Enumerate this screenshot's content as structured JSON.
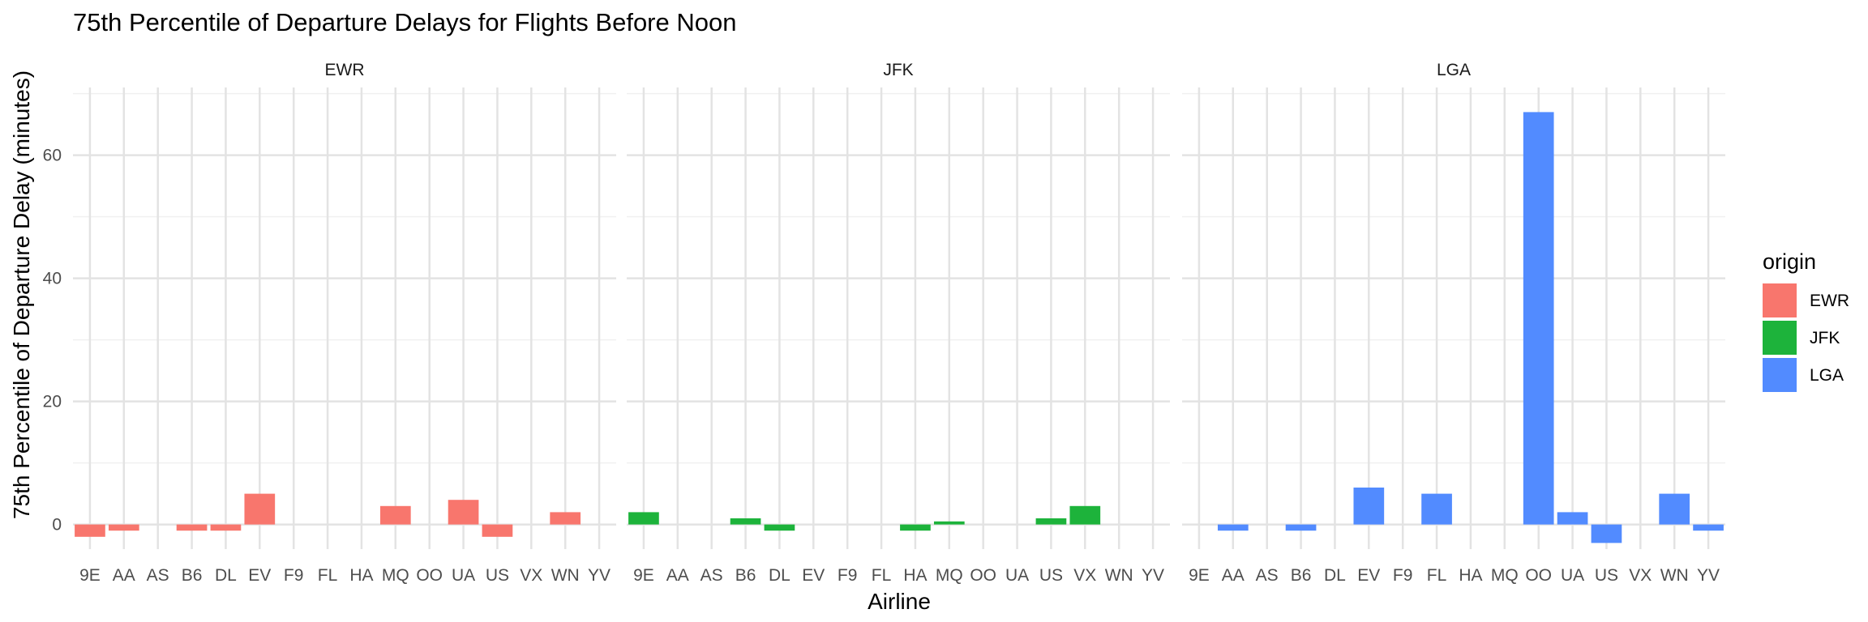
{
  "chart_data": {
    "type": "bar",
    "title": "75th Percentile of Departure Delays for Flights Before Noon",
    "xlabel": "Airline",
    "ylabel": "75th Percentile of Departure Delay (minutes)",
    "ylim": [
      -4,
      71
    ],
    "yticks": [
      0,
      20,
      40,
      60
    ],
    "grid": true,
    "categories": [
      "9E",
      "AA",
      "AS",
      "B6",
      "DL",
      "EV",
      "F9",
      "FL",
      "HA",
      "MQ",
      "OO",
      "UA",
      "US",
      "VX",
      "WN",
      "YV"
    ],
    "facets": [
      {
        "name": "EWR",
        "values": [
          -2,
          -1,
          null,
          -1,
          -1,
          5,
          null,
          null,
          null,
          3,
          null,
          4,
          -2,
          null,
          2,
          null
        ]
      },
      {
        "name": "JFK",
        "values": [
          2,
          null,
          null,
          1,
          -1,
          null,
          null,
          null,
          -1,
          0.5,
          null,
          null,
          1,
          3,
          null,
          null
        ]
      },
      {
        "name": "LGA",
        "values": [
          null,
          -1,
          null,
          -1,
          null,
          6,
          null,
          5,
          null,
          null,
          67,
          2,
          -3,
          null,
          5,
          -1
        ]
      }
    ],
    "legend": {
      "title": "origin",
      "position": "right",
      "entries": [
        {
          "label": "EWR",
          "color": "#F8766D"
        },
        {
          "label": "JFK",
          "color": "#1DB33B"
        },
        {
          "label": "LGA",
          "color": "#528BFF"
        }
      ]
    }
  }
}
